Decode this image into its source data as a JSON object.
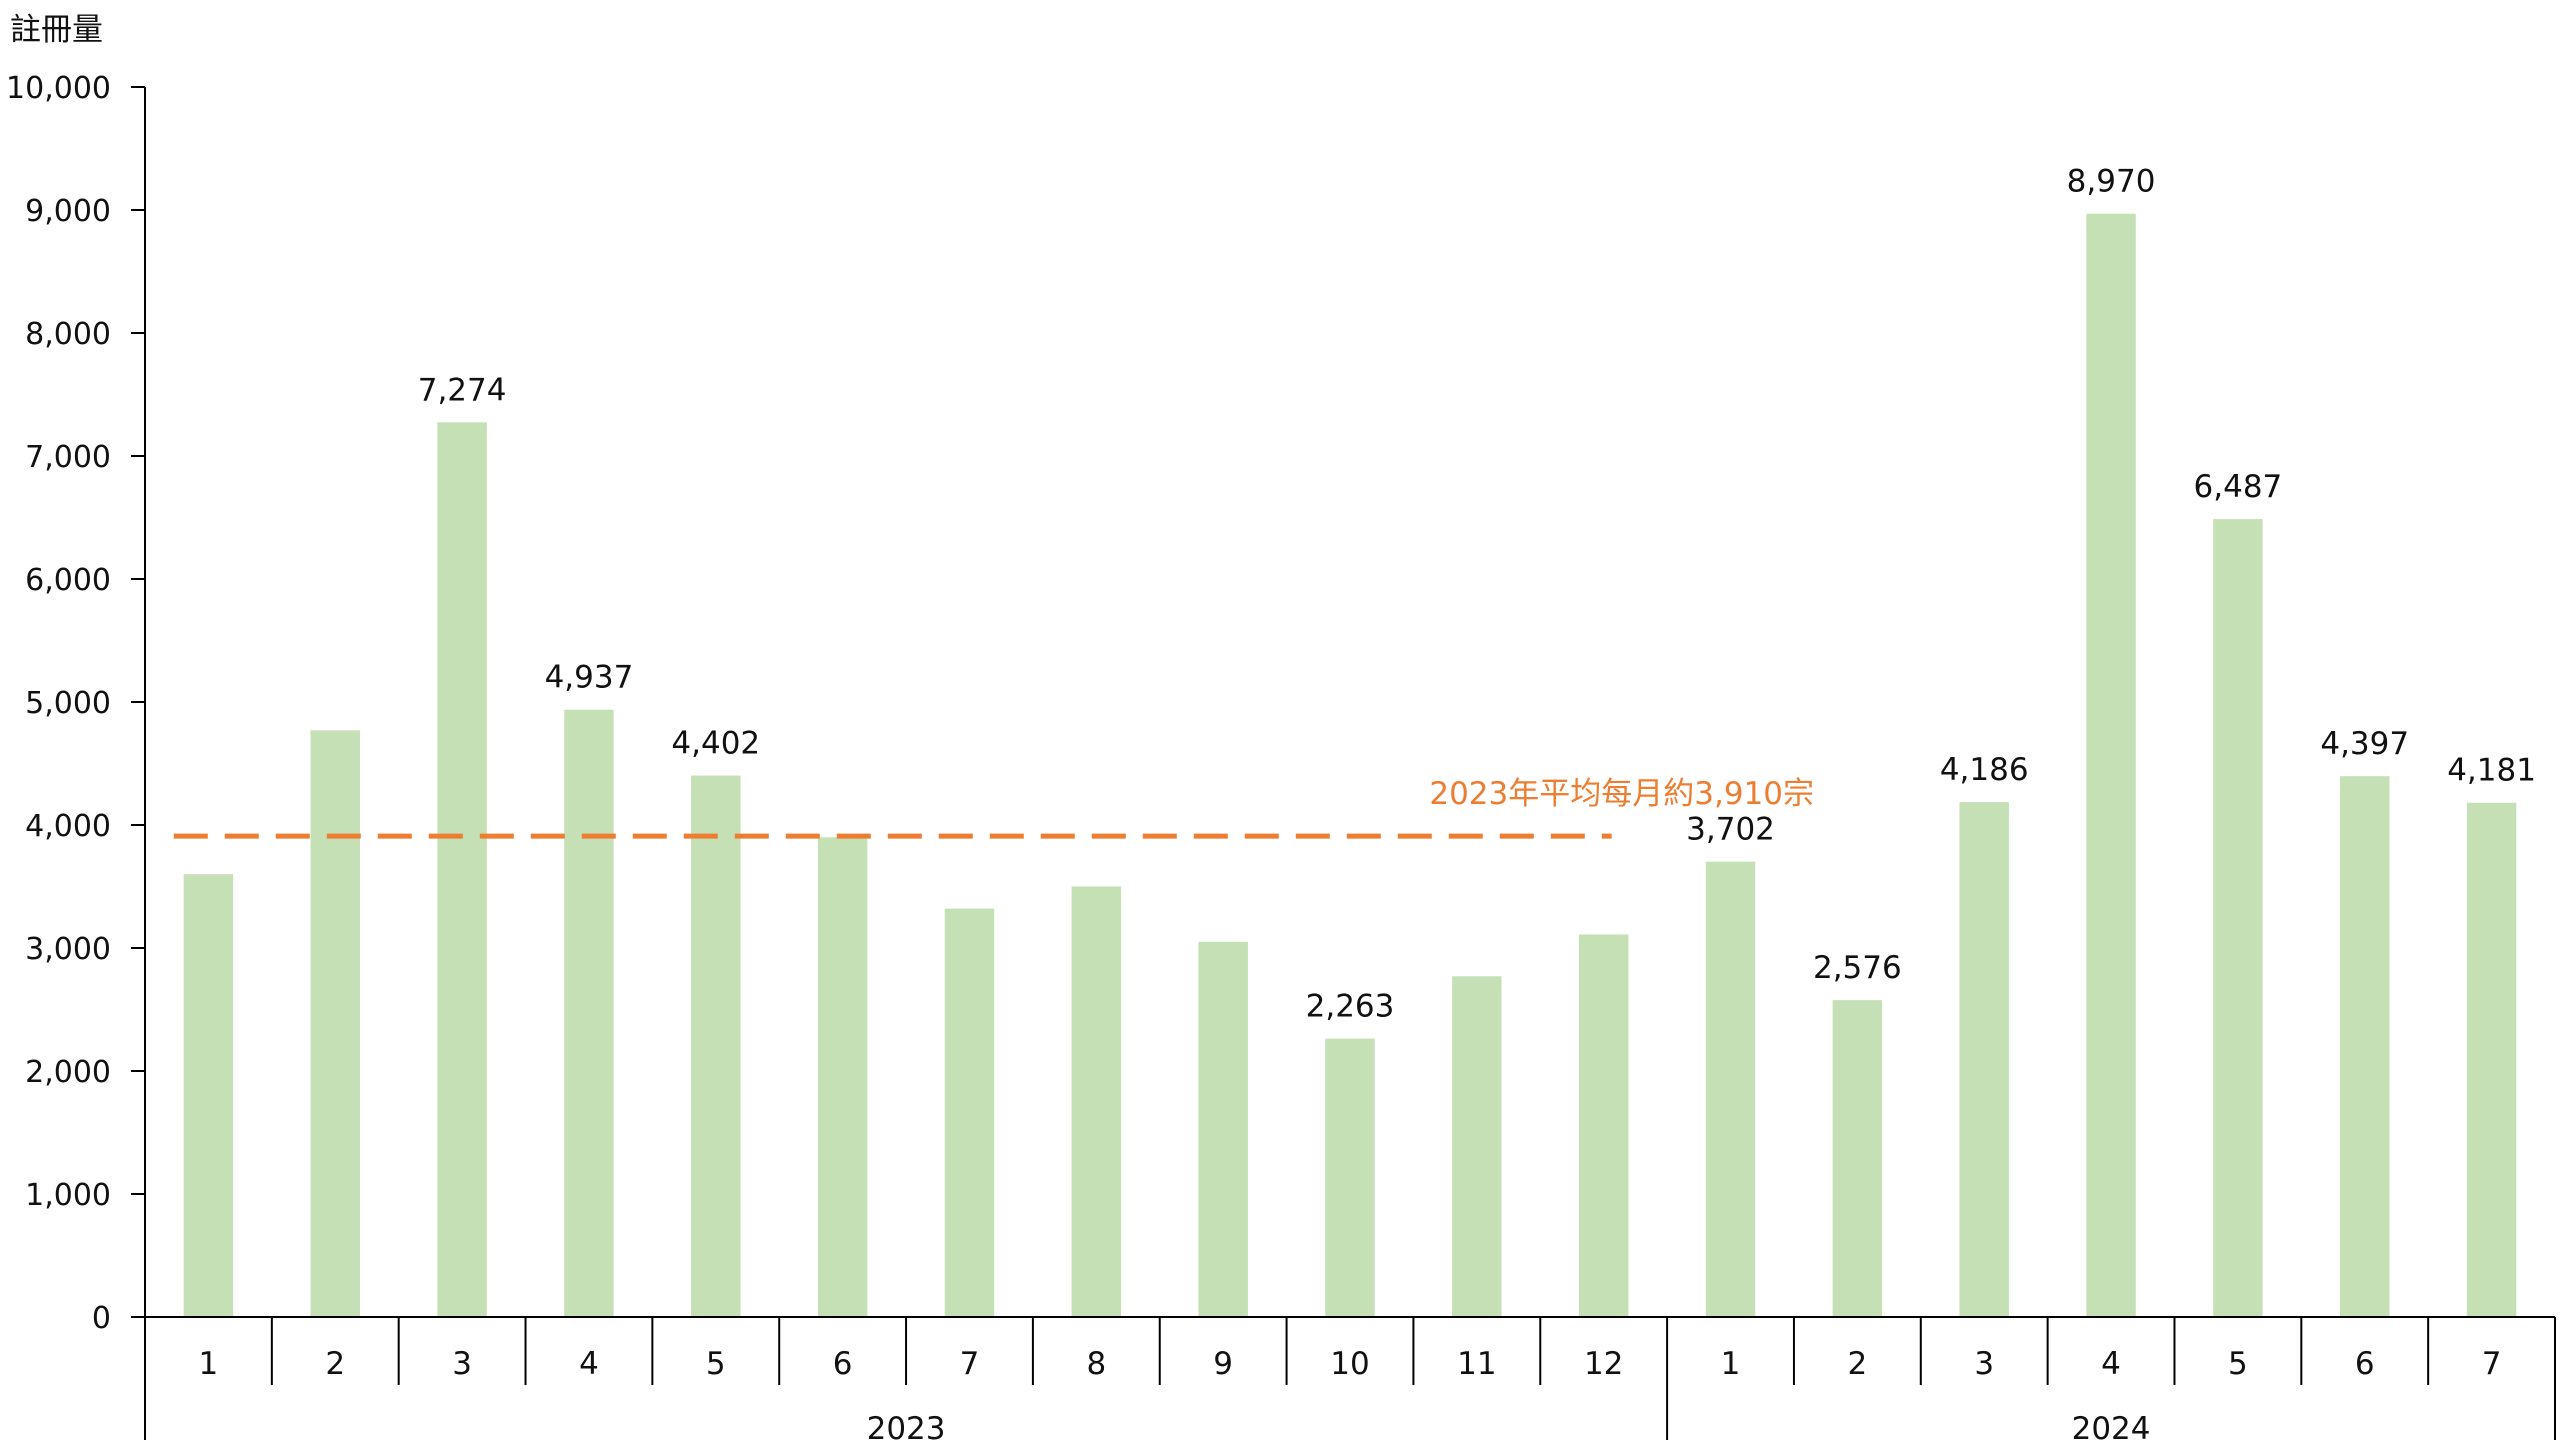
{
  "chart_data": {
    "type": "bar",
    "ylabel": "註冊量",
    "xlabel": "",
    "title": "",
    "ylim": [
      0,
      10000
    ],
    "yticks": [
      0,
      1000,
      2000,
      3000,
      4000,
      5000,
      6000,
      7000,
      8000,
      9000,
      10000
    ],
    "ytick_labels": [
      "0",
      "1,000",
      "2,000",
      "3,000",
      "4,000",
      "5,000",
      "6,000",
      "7,000",
      "8,000",
      "9,000",
      "10,000"
    ],
    "grid": false,
    "bar_color": "#c5e0b4",
    "groups": [
      {
        "label": "2023",
        "months": [
          "1",
          "2",
          "3",
          "4",
          "5",
          "6",
          "7",
          "8",
          "9",
          "10",
          "11",
          "12"
        ]
      },
      {
        "label": "2024",
        "months": [
          "1",
          "2",
          "3",
          "4",
          "5",
          "6",
          "7"
        ]
      }
    ],
    "categories": [
      "2023-1",
      "2023-2",
      "2023-3",
      "2023-4",
      "2023-5",
      "2023-6",
      "2023-7",
      "2023-8",
      "2023-9",
      "2023-10",
      "2023-11",
      "2023-12",
      "2024-1",
      "2024-2",
      "2024-3",
      "2024-4",
      "2024-5",
      "2024-6",
      "2024-7"
    ],
    "values": [
      3600,
      4770,
      7274,
      4937,
      4402,
      3900,
      3320,
      3500,
      3050,
      2263,
      2770,
      3110,
      3702,
      2576,
      4186,
      8970,
      6487,
      4397,
      4181
    ],
    "data_labels": [
      "",
      "",
      "7,274",
      "4,937",
      "4,402",
      "",
      "",
      "",
      "",
      "2,263",
      "",
      "",
      "3,702",
      "2,576",
      "4,186",
      "8,970",
      "6,487",
      "4,397",
      "4,181"
    ],
    "reference_line": {
      "value": 3910,
      "span": "2023",
      "label": "2023年平均每月約3,910宗",
      "color": "#ed7d31",
      "style": "dashed"
    }
  }
}
